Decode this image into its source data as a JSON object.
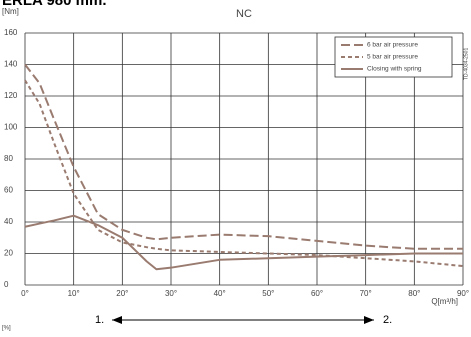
{
  "chart_data": {
    "type": "line",
    "title": "ERLA 980 mm.",
    "subtitle": "NC",
    "ylabel": "[Nm]",
    "xlabel": "Q[m³/h]",
    "footer_label": "[%]",
    "side_code": "TD-4034-2501",
    "range_start": "1.",
    "range_end": "2.",
    "x": [
      0,
      3,
      6,
      10,
      15,
      20,
      25,
      27,
      30,
      40,
      50,
      60,
      70,
      80,
      90
    ],
    "series": [
      {
        "name": "6 bar air pressure",
        "color": "#9a7b70",
        "linestyle": "dashed",
        "values": [
          140,
          128,
          105,
          75,
          45,
          35,
          30,
          29,
          30,
          32,
          31,
          28,
          25,
          23,
          23
        ]
      },
      {
        "name": "5 bar air pressure",
        "color": "#9a7b70",
        "linestyle": "dotted",
        "values": [
          130,
          115,
          90,
          58,
          35,
          27,
          24,
          23,
          22,
          21,
          20,
          19,
          17,
          15,
          12
        ]
      },
      {
        "name": "Closing with spring",
        "color": "#9a7b70",
        "linestyle": "solid",
        "values": [
          37,
          39,
          41,
          44,
          38,
          30,
          15,
          10,
          11,
          16,
          17,
          18,
          19,
          20,
          20
        ]
      }
    ],
    "xlim": [
      0,
      90
    ],
    "xticks": [
      {
        "value": 0,
        "label": "0°"
      },
      {
        "value": 10,
        "label": "10°"
      },
      {
        "value": 20,
        "label": "20°"
      },
      {
        "value": 30,
        "label": "30°"
      },
      {
        "value": 40,
        "label": "40°"
      },
      {
        "value": 50,
        "label": "50°"
      },
      {
        "value": 60,
        "label": "60°"
      },
      {
        "value": 70,
        "label": "70°"
      },
      {
        "value": 80,
        "label": "80°"
      },
      {
        "value": 90,
        "label": "90°"
      }
    ],
    "ylim": [
      0,
      160
    ],
    "yticks": [
      0,
      20,
      40,
      60,
      80,
      100,
      120,
      140,
      160
    ],
    "grid": true,
    "legend": "upper right"
  }
}
